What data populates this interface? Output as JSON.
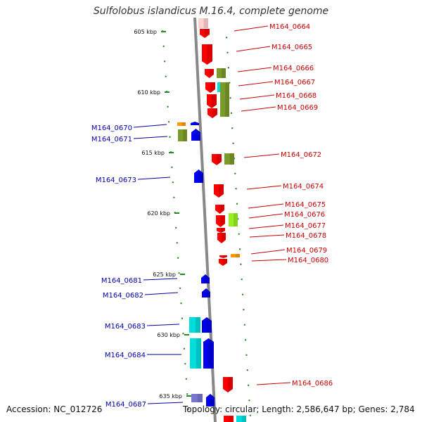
{
  "title": "Sulfolobus islandicus M.16.4, complete genome",
  "footer": {
    "accession": "Accession: NC_012726",
    "topology": "Topology: circular; Length: 2,586,647 bp; Genes: 2,784"
  },
  "scale": {
    "ticks": [
      "605 kbp",
      "610 kbp",
      "615 kbp",
      "620 kbp",
      "625 kbp",
      "630 kbp",
      "635 kbp"
    ]
  },
  "colors": {
    "forward_gene": "#ff0000",
    "reverse_gene": "#0000ee",
    "forward_label": "#cc0000",
    "reverse_label": "#0000aa",
    "olive": "#7a9a2a",
    "lime": "#99ee22",
    "cyan": "#00dddd",
    "orange": "#ff9900",
    "backbone": "#888888",
    "tick": "#228822"
  },
  "forward_genes": [
    "M164_0664",
    "M164_0665",
    "M164_0666",
    "M164_0667",
    "M164_0668",
    "M164_0669",
    "M164_0672",
    "M164_0674",
    "M164_0675",
    "M164_0676",
    "M164_0677",
    "M164_0678",
    "M164_0679",
    "M164_0680",
    "M164_0686"
  ],
  "reverse_genes": [
    "M164_0670",
    "M164_0671",
    "M164_0673",
    "M164_0681",
    "M164_0682",
    "M164_0683",
    "M164_0684",
    "M164_0687"
  ]
}
